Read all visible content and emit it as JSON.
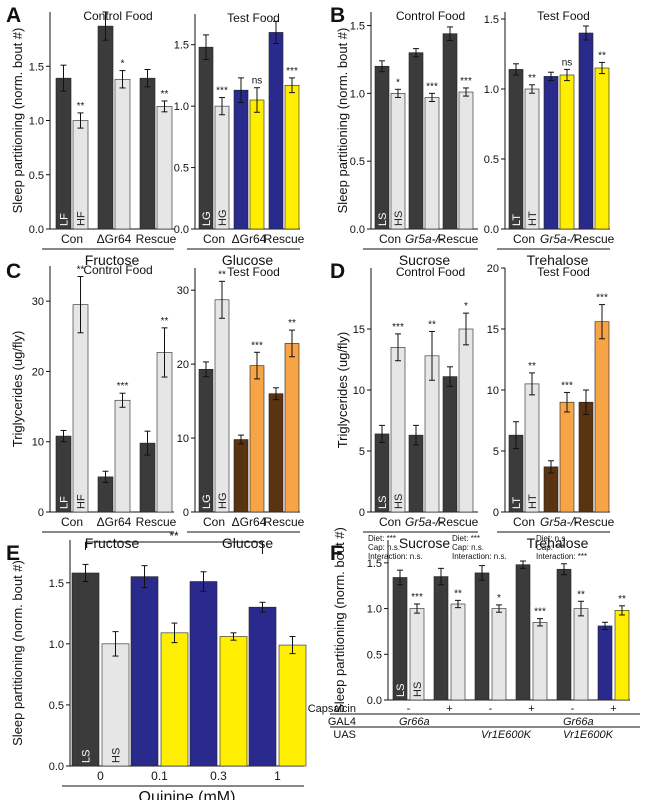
{
  "panels": {
    "A": "A",
    "B": "B",
    "C": "C",
    "D": "D",
    "E": "E",
    "F": "F"
  },
  "colors": {
    "dark": "#3b3b3b",
    "light": "#e6e6e6",
    "blue": "#2a2a8c",
    "yellow": "#ffee00",
    "brown": "#5a3310",
    "orange": "#f7a446",
    "axis": "#111111"
  },
  "chart_data": [
    {
      "id": "A-left",
      "type": "bar",
      "panel": "A",
      "title": "Control Food",
      "ylabel": "Sleep partitioning (norm. bout #)",
      "ylim": [
        0.0,
        2.0
      ],
      "yticks": [
        "0.0",
        "0.5",
        "1.0",
        "1.5"
      ],
      "groups": [
        "Con",
        "ΔGr64",
        "Rescue"
      ],
      "group_italic": [
        false,
        false,
        false
      ],
      "xlabel": "Fructose",
      "bar_labels": [
        "LF",
        "HF"
      ],
      "bars": [
        {
          "value": 1.39,
          "err": 0.12,
          "color": "dark"
        },
        {
          "value": 1.0,
          "err": 0.07,
          "color": "light",
          "sig": "**"
        },
        {
          "value": 1.87,
          "err": 0.13,
          "color": "dark"
        },
        {
          "value": 1.38,
          "err": 0.08,
          "color": "light",
          "sig": "*"
        },
        {
          "value": 1.39,
          "err": 0.08,
          "color": "dark"
        },
        {
          "value": 1.13,
          "err": 0.05,
          "color": "light",
          "sig": "**"
        }
      ]
    },
    {
      "id": "A-right",
      "type": "bar",
      "panel": "A",
      "title": "Test Food",
      "ylabel": "",
      "ylim": [
        0.0,
        1.75
      ],
      "yticks": [
        "0.0",
        "0.5",
        "1.0",
        "1.5"
      ],
      "groups": [
        "Con",
        "ΔGr64",
        "Rescue"
      ],
      "group_italic": [
        false,
        false,
        false
      ],
      "xlabel": "Glucose",
      "bar_labels": [
        "LG",
        "HG"
      ],
      "bars": [
        {
          "value": 1.48,
          "err": 0.1,
          "color": "dark"
        },
        {
          "value": 1.0,
          "err": 0.07,
          "color": "light",
          "sig": "***"
        },
        {
          "value": 1.13,
          "err": 0.1,
          "color": "blue"
        },
        {
          "value": 1.05,
          "err": 0.1,
          "color": "yellow",
          "sig": "ns"
        },
        {
          "value": 1.6,
          "err": 0.09,
          "color": "blue"
        },
        {
          "value": 1.17,
          "err": 0.06,
          "color": "yellow",
          "sig": "***"
        }
      ]
    },
    {
      "id": "B-left",
      "type": "bar",
      "panel": "B",
      "title": "Control Food",
      "ylabel": "Sleep partitioning (norm. bout #)",
      "ylim": [
        0.0,
        1.6
      ],
      "yticks": [
        "0.0",
        "0.5",
        "1.0",
        "1.5"
      ],
      "groups": [
        "Con",
        "Gr5a-/-",
        "Rescue"
      ],
      "group_italic": [
        false,
        true,
        false
      ],
      "xlabel": "Sucrose",
      "bar_labels": [
        "LS",
        "HS"
      ],
      "bars": [
        {
          "value": 1.2,
          "err": 0.04,
          "color": "dark"
        },
        {
          "value": 1.0,
          "err": 0.03,
          "color": "light",
          "sig": "*"
        },
        {
          "value": 1.3,
          "err": 0.03,
          "color": "dark"
        },
        {
          "value": 0.97,
          "err": 0.03,
          "color": "light",
          "sig": "***"
        },
        {
          "value": 1.44,
          "err": 0.05,
          "color": "dark"
        },
        {
          "value": 1.01,
          "err": 0.03,
          "color": "light",
          "sig": "***"
        }
      ]
    },
    {
      "id": "B-right",
      "type": "bar",
      "panel": "B",
      "title": "Test Food",
      "ylabel": "",
      "ylim": [
        0.0,
        1.55
      ],
      "yticks": [
        "0.0",
        "0.5",
        "1.0",
        "1.5"
      ],
      "groups": [
        "Con",
        "Gr5a-/-",
        "Rescue"
      ],
      "group_italic": [
        false,
        true,
        false
      ],
      "xlabel": "Trehalose",
      "bar_labels": [
        "LT",
        "HT"
      ],
      "bars": [
        {
          "value": 1.14,
          "err": 0.04,
          "color": "dark"
        },
        {
          "value": 1.0,
          "err": 0.03,
          "color": "light",
          "sig": "**"
        },
        {
          "value": 1.09,
          "err": 0.03,
          "color": "blue"
        },
        {
          "value": 1.1,
          "err": 0.04,
          "color": "yellow",
          "sig": "ns"
        },
        {
          "value": 1.4,
          "err": 0.05,
          "color": "blue"
        },
        {
          "value": 1.15,
          "err": 0.04,
          "color": "yellow",
          "sig": "**"
        }
      ]
    },
    {
      "id": "C-left",
      "type": "bar",
      "panel": "C",
      "title": "Control Food",
      "ylabel": "Triglycerides (ug/fly)",
      "ylim": [
        0,
        35
      ],
      "yticks": [
        "0",
        "10",
        "20",
        "30"
      ],
      "groups": [
        "Con",
        "ΔGr64",
        "Rescue"
      ],
      "group_italic": [
        false,
        false,
        false
      ],
      "xlabel": "Fructose",
      "bar_labels": [
        "LF",
        "HF"
      ],
      "bars": [
        {
          "value": 10.8,
          "err": 0.8,
          "color": "dark"
        },
        {
          "value": 29.5,
          "err": 4.0,
          "color": "light",
          "sig": "**"
        },
        {
          "value": 5.0,
          "err": 0.8,
          "color": "dark"
        },
        {
          "value": 15.9,
          "err": 1.0,
          "color": "light",
          "sig": "***"
        },
        {
          "value": 9.8,
          "err": 1.7,
          "color": "dark"
        },
        {
          "value": 22.7,
          "err": 3.5,
          "color": "light",
          "sig": "**"
        }
      ]
    },
    {
      "id": "C-right",
      "type": "bar",
      "panel": "C",
      "title": "Test Food",
      "ylabel": "",
      "ylim": [
        0,
        33
      ],
      "yticks": [
        "0",
        "10",
        "20",
        "30"
      ],
      "groups": [
        "Con",
        "ΔGr64",
        "Rescue"
      ],
      "group_italic": [
        false,
        false,
        false
      ],
      "xlabel": "Glucose",
      "bar_labels": [
        "LG",
        "HG"
      ],
      "bars": [
        {
          "value": 19.3,
          "err": 1.0,
          "color": "dark"
        },
        {
          "value": 28.7,
          "err": 2.5,
          "color": "light",
          "sig": "**"
        },
        {
          "value": 9.8,
          "err": 0.6,
          "color": "brown"
        },
        {
          "value": 19.8,
          "err": 1.8,
          "color": "orange",
          "sig": "***"
        },
        {
          "value": 16.0,
          "err": 0.8,
          "color": "brown"
        },
        {
          "value": 22.8,
          "err": 1.8,
          "color": "orange",
          "sig": "**"
        }
      ]
    },
    {
      "id": "D-left",
      "type": "bar",
      "panel": "D",
      "title": "Control Food",
      "ylabel": "Triglycerides (ug/fly)",
      "ylim": [
        0,
        20
      ],
      "yticks": [
        "0",
        "5",
        "10",
        "15"
      ],
      "groups": [
        "Con",
        "Gr5a-/-",
        "Rescue"
      ],
      "group_italic": [
        false,
        true,
        false
      ],
      "xlabel": "Sucrose",
      "bar_labels": [
        "LS",
        "HS"
      ],
      "bars": [
        {
          "value": 6.4,
          "err": 0.7,
          "color": "dark"
        },
        {
          "value": 13.5,
          "err": 1.1,
          "color": "light",
          "sig": "***"
        },
        {
          "value": 6.3,
          "err": 0.8,
          "color": "dark"
        },
        {
          "value": 12.8,
          "err": 2.0,
          "color": "light",
          "sig": "**"
        },
        {
          "value": 11.1,
          "err": 0.8,
          "color": "dark"
        },
        {
          "value": 15.0,
          "err": 1.3,
          "color": "light",
          "sig": "*"
        }
      ]
    },
    {
      "id": "D-right",
      "type": "bar",
      "panel": "D",
      "title": "Test Food",
      "ylabel": "",
      "ylim": [
        0,
        20
      ],
      "yticks": [
        "0",
        "5",
        "10",
        "15",
        "20"
      ],
      "groups": [
        "Con",
        "Gr5a-/-",
        "Rescue"
      ],
      "group_italic": [
        false,
        true,
        false
      ],
      "xlabel": "Trehalose",
      "bar_labels": [
        "LT",
        "HT"
      ],
      "bars": [
        {
          "value": 6.3,
          "err": 1.1,
          "color": "dark"
        },
        {
          "value": 10.5,
          "err": 0.9,
          "color": "light",
          "sig": "**"
        },
        {
          "value": 3.7,
          "err": 0.5,
          "color": "brown"
        },
        {
          "value": 9.0,
          "err": 0.8,
          "color": "orange",
          "sig": "***"
        },
        {
          "value": 9.0,
          "err": 1.0,
          "color": "brown"
        },
        {
          "value": 15.6,
          "err": 1.4,
          "color": "orange",
          "sig": "***"
        }
      ]
    },
    {
      "id": "E",
      "type": "bar",
      "panel": "E",
      "title": "",
      "ylabel": "Sleep partitioning (norm. bout #)",
      "ylim": [
        0.0,
        1.85
      ],
      "yticks": [
        "0.0",
        "0.5",
        "1.0",
        "1.5"
      ],
      "groups": [
        "0",
        "0.1",
        "0.3",
        "1"
      ],
      "group_italic": [
        false,
        false,
        false,
        false
      ],
      "xlabel": "Quinine (mM)",
      "bar_labels": [
        "LS",
        "HS"
      ],
      "bracket": {
        "from": 0,
        "to": 3,
        "label": "**"
      },
      "bars": [
        {
          "value": 1.58,
          "err": 0.07,
          "color": "dark"
        },
        {
          "value": 1.0,
          "err": 0.1,
          "color": "light"
        },
        {
          "value": 1.55,
          "err": 0.09,
          "color": "blue"
        },
        {
          "value": 1.09,
          "err": 0.08,
          "color": "yellow"
        },
        {
          "value": 1.51,
          "err": 0.08,
          "color": "blue"
        },
        {
          "value": 1.06,
          "err": 0.03,
          "color": "yellow"
        },
        {
          "value": 1.3,
          "err": 0.04,
          "color": "blue"
        },
        {
          "value": 0.99,
          "err": 0.07,
          "color": "yellow"
        }
      ]
    },
    {
      "id": "F",
      "type": "bar",
      "panel": "F",
      "title": "",
      "ylabel": "Sleep partitioning (norm. bout #)",
      "ylim": [
        0.0,
        1.75
      ],
      "yticks": [
        "0.0",
        "0.5",
        "1.0",
        "1.5"
      ],
      "groups": [
        "",
        "",
        "",
        "",
        "",
        ""
      ],
      "group_italic": [
        false,
        false,
        false,
        false,
        false,
        false
      ],
      "xlabel": "",
      "bar_labels": [
        "LS",
        "HS"
      ],
      "stats": [
        [
          "Diet: ***",
          "Cap: n.s.",
          "Interaction: n.s."
        ],
        [
          "Diet: ***",
          "Cap: n.s.",
          "Interaction: n.s."
        ],
        [
          "Diet: n.s.",
          "Cap: ***",
          "Interaction: ***"
        ]
      ],
      "rows": [
        {
          "label": "Capsaicin",
          "cells": [
            "-",
            "+",
            "-",
            "+",
            "-",
            "+"
          ]
        },
        {
          "label": "GAL4",
          "cells": [
            "Gr66a",
            "",
            "",
            "",
            "Gr66a",
            ""
          ]
        },
        {
          "label": "UAS",
          "cells": [
            "",
            "",
            "Vr1E600K",
            "",
            "Vr1E600K",
            ""
          ]
        }
      ],
      "bars": [
        {
          "value": 1.34,
          "err": 0.08,
          "color": "dark"
        },
        {
          "value": 1.0,
          "err": 0.05,
          "color": "light",
          "sig": "***"
        },
        {
          "value": 1.35,
          "err": 0.09,
          "color": "dark"
        },
        {
          "value": 1.05,
          "err": 0.04,
          "color": "light",
          "sig": "**"
        },
        {
          "value": 1.39,
          "err": 0.08,
          "color": "dark"
        },
        {
          "value": 1.0,
          "err": 0.04,
          "color": "light",
          "sig": "*"
        },
        {
          "value": 1.48,
          "err": 0.04,
          "color": "dark"
        },
        {
          "value": 0.85,
          "err": 0.04,
          "color": "light",
          "sig": "***"
        },
        {
          "value": 1.43,
          "err": 0.06,
          "color": "dark"
        },
        {
          "value": 1.0,
          "err": 0.08,
          "color": "light",
          "sig": "**"
        },
        {
          "value": 0.81,
          "err": 0.04,
          "color": "blue"
        },
        {
          "value": 0.98,
          "err": 0.05,
          "color": "yellow",
          "sig": "**"
        }
      ]
    }
  ]
}
